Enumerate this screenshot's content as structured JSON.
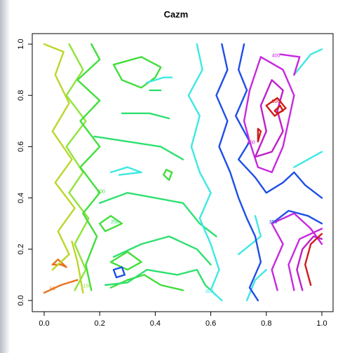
{
  "chart_data": {
    "type": "contour",
    "title": "Cazm",
    "xlabel": "",
    "ylabel": "",
    "xlim": [
      0.0,
      1.0
    ],
    "ylim": [
      0.0,
      1.0
    ],
    "x_ticks": [
      "0.0",
      "0.2",
      "0.4",
      "0.6",
      "0.8",
      "1.0"
    ],
    "y_ticks": [
      "0.0",
      "0.2",
      "0.4",
      "0.6",
      "0.8",
      "1.0"
    ],
    "grid": false,
    "legend": "none",
    "contour_labels": [
      "50",
      "150",
      "200",
      "250",
      "300",
      "350",
      "400",
      "450",
      "500"
    ],
    "levels": [
      {
        "value": 50,
        "color": "#e87420",
        "paths": [
          [
            [
              0.0,
              0.03
            ],
            [
              0.06,
              0.06
            ],
            [
              0.12,
              0.08
            ]
          ],
          [
            [
              0.06,
              0.14
            ],
            [
              0.08,
              0.13
            ],
            [
              0.05,
              0.16
            ],
            [
              0.03,
              0.14
            ],
            [
              0.06,
              0.14
            ]
          ]
        ]
      },
      {
        "value": 100,
        "color": "#bcd62a",
        "paths": [
          [
            [
              0.03,
              0.12
            ],
            [
              0.09,
              0.18
            ],
            [
              0.05,
              0.27
            ],
            [
              0.11,
              0.36
            ],
            [
              0.04,
              0.46
            ],
            [
              0.1,
              0.55
            ],
            [
              0.03,
              0.66
            ],
            [
              0.09,
              0.77
            ],
            [
              0.04,
              0.88
            ],
            [
              0.07,
              0.97
            ],
            [
              0.0,
              1.0
            ]
          ],
          [
            [
              0.14,
              0.03
            ],
            [
              0.12,
              0.15
            ],
            [
              0.1,
              0.23
            ]
          ]
        ]
      },
      {
        "value": 150,
        "color": "#8ee43a",
        "paths": [
          [
            [
              0.11,
              0.04
            ],
            [
              0.15,
              0.12
            ],
            [
              0.11,
              0.22
            ],
            [
              0.16,
              0.32
            ],
            [
              0.09,
              0.42
            ],
            [
              0.14,
              0.5
            ],
            [
              0.08,
              0.6
            ],
            [
              0.15,
              0.7
            ],
            [
              0.08,
              0.8
            ],
            [
              0.14,
              0.9
            ],
            [
              0.09,
              1.0
            ]
          ]
        ]
      },
      {
        "value": 200,
        "color": "#42de3c",
        "paths": [
          [
            [
              0.17,
              0.04
            ],
            [
              0.15,
              0.14
            ],
            [
              0.19,
              0.25
            ],
            [
              0.14,
              0.34
            ],
            [
              0.2,
              0.42
            ],
            [
              0.13,
              0.52
            ],
            [
              0.2,
              0.6
            ],
            [
              0.13,
              0.7
            ],
            [
              0.2,
              0.78
            ],
            [
              0.12,
              0.86
            ],
            [
              0.2,
              0.94
            ],
            [
              0.17,
              1.0
            ]
          ],
          [
            [
              0.24,
              0.05
            ],
            [
              0.3,
              0.08
            ],
            [
              0.36,
              0.1
            ],
            [
              0.42,
              0.06
            ],
            [
              0.5,
              0.04
            ]
          ],
          [
            [
              0.22,
              0.27
            ],
            [
              0.28,
              0.3
            ],
            [
              0.24,
              0.33
            ],
            [
              0.2,
              0.3
            ],
            [
              0.22,
              0.27
            ]
          ],
          [
            [
              0.25,
              0.92
            ],
            [
              0.35,
              0.95
            ],
            [
              0.42,
              0.91
            ],
            [
              0.4,
              0.87
            ],
            [
              0.35,
              0.83
            ],
            [
              0.28,
              0.86
            ],
            [
              0.25,
              0.92
            ]
          ],
          [
            [
              0.24,
              0.15
            ],
            [
              0.3,
              0.19
            ],
            [
              0.35,
              0.15
            ],
            [
              0.3,
              0.12
            ],
            [
              0.24,
              0.15
            ]
          ],
          [
            [
              0.45,
              0.47
            ],
            [
              0.46,
              0.5
            ],
            [
              0.44,
              0.51
            ],
            [
              0.43,
              0.49
            ],
            [
              0.45,
              0.47
            ]
          ]
        ]
      },
      {
        "value": 250,
        "color": "#2ee070",
        "paths": [
          [
            [
              0.22,
              0.06
            ],
            [
              0.3,
              0.07
            ],
            [
              0.37,
              0.12
            ],
            [
              0.48,
              0.1
            ],
            [
              0.55,
              0.12
            ],
            [
              0.58,
              0.06
            ],
            [
              0.62,
              0.02
            ]
          ],
          [
            [
              0.25,
              0.17
            ],
            [
              0.35,
              0.22
            ],
            [
              0.45,
              0.25
            ],
            [
              0.55,
              0.2
            ],
            [
              0.6,
              0.14
            ]
          ],
          [
            [
              0.2,
              0.38
            ],
            [
              0.3,
              0.42
            ],
            [
              0.4,
              0.4
            ],
            [
              0.5,
              0.38
            ],
            [
              0.56,
              0.3
            ],
            [
              0.62,
              0.25
            ]
          ],
          [
            [
              0.18,
              0.64
            ],
            [
              0.3,
              0.62
            ],
            [
              0.42,
              0.6
            ],
            [
              0.5,
              0.55
            ]
          ],
          [
            [
              0.28,
              0.73
            ],
            [
              0.38,
              0.73
            ],
            [
              0.45,
              0.71
            ]
          ],
          [
            [
              0.38,
              0.82
            ],
            [
              0.42,
              0.82
            ]
          ]
        ]
      },
      {
        "value": 300,
        "color": "#3ee8e4",
        "paths": [
          [
            [
              0.55,
              1.0
            ],
            [
              0.57,
              0.9
            ],
            [
              0.52,
              0.8
            ],
            [
              0.56,
              0.72
            ],
            [
              0.53,
              0.6
            ],
            [
              0.56,
              0.5
            ],
            [
              0.6,
              0.42
            ],
            [
              0.56,
              0.32
            ],
            [
              0.6,
              0.22
            ],
            [
              0.63,
              0.12
            ],
            [
              0.6,
              0.04
            ],
            [
              0.64,
              0.0
            ]
          ],
          [
            [
              0.27,
              0.49
            ],
            [
              0.35,
              0.5
            ],
            [
              0.3,
              0.52
            ],
            [
              0.24,
              0.5
            ]
          ],
          [
            [
              0.37,
              0.85
            ],
            [
              0.43,
              0.87
            ],
            [
              0.46,
              0.87
            ]
          ],
          [
            [
              0.73,
              0.0
            ],
            [
              0.76,
              0.08
            ],
            [
              0.8,
              0.12
            ]
          ],
          [
            [
              0.7,
              0.18
            ],
            [
              0.78,
              0.25
            ],
            [
              0.76,
              0.33
            ]
          ],
          [
            [
              0.9,
              0.52
            ],
            [
              0.95,
              0.55
            ],
            [
              1.0,
              0.58
            ]
          ],
          [
            [
              0.9,
              0.88
            ],
            [
              0.96,
              0.96
            ],
            [
              1.0,
              0.98
            ]
          ]
        ]
      },
      {
        "value": 350,
        "color": "#1e4ee8",
        "paths": [
          [
            [
              0.64,
              1.0
            ],
            [
              0.66,
              0.9
            ],
            [
              0.62,
              0.8
            ],
            [
              0.66,
              0.7
            ],
            [
              0.63,
              0.6
            ],
            [
              0.67,
              0.5
            ],
            [
              0.7,
              0.4
            ],
            [
              0.73,
              0.32
            ],
            [
              0.76,
              0.25
            ],
            [
              0.78,
              0.15
            ],
            [
              0.74,
              0.05
            ],
            [
              0.77,
              0.0
            ]
          ],
          [
            [
              0.72,
              1.0
            ],
            [
              0.7,
              0.9
            ],
            [
              0.73,
              0.82
            ],
            [
              0.69,
              0.72
            ],
            [
              0.74,
              0.62
            ],
            [
              0.7,
              0.55
            ],
            [
              0.76,
              0.48
            ],
            [
              0.8,
              0.42
            ],
            [
              0.86,
              0.46
            ],
            [
              0.9,
              0.5
            ],
            [
              0.94,
              0.45
            ],
            [
              1.0,
              0.4
            ]
          ],
          [
            [
              0.26,
              0.09
            ],
            [
              0.29,
              0.1
            ],
            [
              0.28,
              0.13
            ],
            [
              0.25,
              0.12
            ],
            [
              0.26,
              0.09
            ]
          ],
          [
            [
              0.82,
              0.3
            ],
            [
              0.88,
              0.35
            ],
            [
              0.95,
              0.33
            ],
            [
              1.0,
              0.3
            ]
          ]
        ]
      },
      {
        "value": 400,
        "color": "#c828e0",
        "paths": [
          [
            [
              0.78,
              0.95
            ],
            [
              0.86,
              0.9
            ],
            [
              0.9,
              0.8
            ],
            [
              0.88,
              0.7
            ],
            [
              0.86,
              0.6
            ],
            [
              0.82,
              0.5
            ],
            [
              0.77,
              0.52
            ],
            [
              0.74,
              0.62
            ],
            [
              0.72,
              0.7
            ],
            [
              0.74,
              0.82
            ],
            [
              0.78,
              0.95
            ]
          ],
          [
            [
              0.84,
              0.04
            ],
            [
              0.82,
              0.12
            ],
            [
              0.86,
              0.22
            ],
            [
              0.82,
              0.3
            ],
            [
              0.9,
              0.34
            ],
            [
              0.96,
              0.28
            ],
            [
              1.0,
              0.22
            ]
          ],
          [
            [
              0.9,
              0.04
            ],
            [
              0.88,
              0.14
            ],
            [
              0.92,
              0.24
            ],
            [
              1.0,
              0.28
            ]
          ],
          [
            [
              0.85,
              0.96
            ],
            [
              0.92,
              0.95
            ],
            [
              0.9,
              0.88
            ]
          ]
        ]
      },
      {
        "value": 450,
        "color": "#c01ec8",
        "paths": [
          [
            [
              0.76,
              0.56
            ],
            [
              0.8,
              0.66
            ],
            [
              0.78,
              0.76
            ],
            [
              0.82,
              0.86
            ],
            [
              0.86,
              0.82
            ],
            [
              0.84,
              0.74
            ],
            [
              0.86,
              0.66
            ],
            [
              0.82,
              0.58
            ],
            [
              0.76,
              0.56
            ]
          ],
          [
            [
              0.93,
              0.04
            ],
            [
              0.91,
              0.12
            ],
            [
              0.93,
              0.2
            ],
            [
              0.97,
              0.25
            ],
            [
              1.0,
              0.24
            ]
          ]
        ]
      },
      {
        "value": 500,
        "color": "#d01c1c",
        "paths": [
          [
            [
              0.8,
              0.76
            ],
            [
              0.84,
              0.79
            ],
            [
              0.87,
              0.75
            ],
            [
              0.83,
              0.72
            ],
            [
              0.8,
              0.76
            ]
          ],
          [
            [
              0.83,
              0.74
            ],
            [
              0.85,
              0.76
            ],
            [
              0.86,
              0.74
            ],
            [
              0.84,
              0.73
            ],
            [
              0.83,
              0.74
            ]
          ],
          [
            [
              0.77,
              0.62
            ],
            [
              0.78,
              0.66
            ],
            [
              0.77,
              0.67
            ],
            [
              0.77,
              0.62
            ]
          ],
          [
            [
              0.96,
              0.06
            ],
            [
              0.94,
              0.14
            ],
            [
              0.96,
              0.22
            ],
            [
              1.0,
              0.26
            ]
          ]
        ]
      }
    ],
    "label_positions": [
      {
        "text": "50",
        "x": 0.02,
        "y": 0.04,
        "color": "#e87420"
      },
      {
        "text": "150",
        "x": 0.14,
        "y": 0.05,
        "color": "#8ee43a"
      },
      {
        "text": "200",
        "x": 0.19,
        "y": 0.42,
        "color": "#42de3c"
      },
      {
        "text": "250",
        "x": 0.24,
        "y": 0.3,
        "color": "#2ee070"
      },
      {
        "text": "300",
        "x": 0.58,
        "y": 0.03,
        "color": "#3ee8e4"
      },
      {
        "text": "350",
        "x": 0.81,
        "y": 0.3,
        "color": "#1e4ee8"
      },
      {
        "text": "400",
        "x": 0.82,
        "y": 0.95,
        "color": "#c828e0"
      },
      {
        "text": "450",
        "x": 0.73,
        "y": 0.61,
        "color": "#c01ec8"
      },
      {
        "text": "500",
        "x": 0.82,
        "y": 0.77,
        "color": "#d01c1c"
      }
    ]
  }
}
